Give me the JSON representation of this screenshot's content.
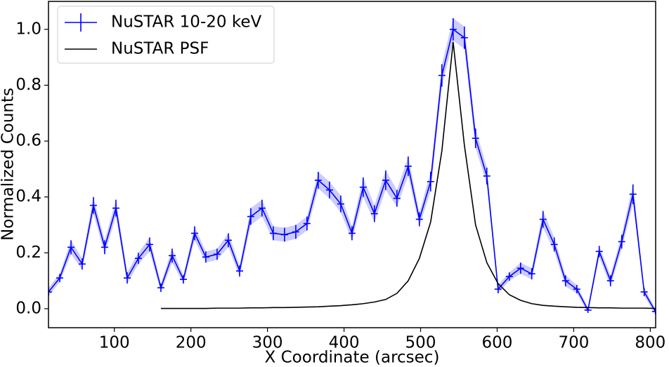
{
  "chart_data": {
    "type": "errorline",
    "xlabel": "X Coordinate (arcsec)",
    "ylabel": "Normalized Counts",
    "xlim": [
      14,
      807
    ],
    "ylim": [
      -0.068,
      1.1
    ],
    "xticks": [
      100,
      200,
      300,
      400,
      500,
      600,
      700,
      800
    ],
    "yticks": [
      {
        "value": 0,
        "label": "0.0"
      },
      {
        "value": 0.2,
        "label": "0.2"
      },
      {
        "value": 0.4,
        "label": "0.4"
      },
      {
        "value": 0.6,
        "label": "0.6"
      },
      {
        "value": 0.8,
        "label": "0.8"
      },
      {
        "value": 1,
        "label": "1.0"
      }
    ],
    "legend": "upper left",
    "band_opacity": 0.2,
    "series": [
      {
        "name": "NuSTAR 10-20 keV",
        "color": "#0000ff",
        "x": [
          14.0,
          28.7,
          43.4,
          58.0,
          72.7,
          87.4,
          102.1,
          116.8,
          131.4,
          146.1,
          160.8,
          175.5,
          190.2,
          204.8,
          219.5,
          234.2,
          248.9,
          263.6,
          278.2,
          292.9,
          307.6,
          322.3,
          337.0,
          351.6,
          366.3,
          381.0,
          395.7,
          410.4,
          425.0,
          439.7,
          454.4,
          469.1,
          483.8,
          498.4,
          513.1,
          527.8,
          542.5,
          557.2,
          571.8,
          586.5,
          601.2,
          615.9,
          630.6,
          645.2,
          659.9,
          674.6,
          689.3,
          704.0,
          718.6,
          733.3,
          748.0,
          762.7,
          777.4,
          792.0,
          806.7
        ],
        "values": [
          0.06,
          0.11,
          0.22,
          0.16,
          0.37,
          0.22,
          0.36,
          0.11,
          0.18,
          0.23,
          0.075,
          0.19,
          0.105,
          0.27,
          0.185,
          0.195,
          0.245,
          0.135,
          0.33,
          0.36,
          0.27,
          0.265,
          0.275,
          0.305,
          0.46,
          0.425,
          0.375,
          0.27,
          0.435,
          0.34,
          0.46,
          0.395,
          0.51,
          0.32,
          0.455,
          0.835,
          1.0,
          0.97,
          0.61,
          0.475,
          0.07,
          0.115,
          0.145,
          0.125,
          0.32,
          0.23,
          0.1,
          0.07,
          -0.005,
          0.205,
          0.1,
          0.24,
          0.41,
          0.06,
          -0.01
        ],
        "errors": [
          0.015,
          0.015,
          0.025,
          0.02,
          0.03,
          0.025,
          0.03,
          0.02,
          0.02,
          0.025,
          0.015,
          0.025,
          0.015,
          0.025,
          0.02,
          0.02,
          0.025,
          0.02,
          0.03,
          0.03,
          0.025,
          0.025,
          0.025,
          0.025,
          0.03,
          0.03,
          0.03,
          0.025,
          0.035,
          0.03,
          0.035,
          0.03,
          0.035,
          0.025,
          0.035,
          0.04,
          0.04,
          0.04,
          0.035,
          0.03,
          0.015,
          0.015,
          0.02,
          0.02,
          0.03,
          0.025,
          0.02,
          0.015,
          0.01,
          0.02,
          0.02,
          0.025,
          0.035,
          0.015,
          0.01
        ]
      },
      {
        "name": "NuSTAR PSF",
        "color": "#000000",
        "x": [
          160.8,
          175.5,
          190.2,
          204.8,
          219.5,
          234.2,
          248.9,
          263.6,
          278.2,
          292.9,
          307.6,
          322.3,
          337.0,
          351.6,
          366.3,
          381.0,
          395.7,
          410.4,
          425.0,
          439.7,
          454.4,
          469.1,
          483.8,
          498.4,
          513.1,
          527.8,
          542.5,
          557.2,
          571.8,
          586.5,
          601.2,
          615.9,
          630.6,
          645.2,
          659.9,
          674.6,
          689.3,
          704.0,
          718.6,
          733.3,
          748.0,
          762.7,
          777.4,
          792.0,
          806.7
        ],
        "values": [
          0.001,
          0.001,
          0.001,
          0.001,
          0.001,
          0.002,
          0.002,
          0.002,
          0.003,
          0.003,
          0.004,
          0.004,
          0.005,
          0.006,
          0.007,
          0.009,
          0.011,
          0.014,
          0.018,
          0.024,
          0.033,
          0.055,
          0.1,
          0.18,
          0.31,
          0.565,
          0.955,
          0.585,
          0.3,
          0.165,
          0.09,
          0.05,
          0.03,
          0.018,
          0.012,
          0.009,
          0.007,
          0.005,
          0.004,
          0.003,
          0.003,
          0.002,
          0.002,
          0.002,
          0.001
        ]
      }
    ]
  }
}
